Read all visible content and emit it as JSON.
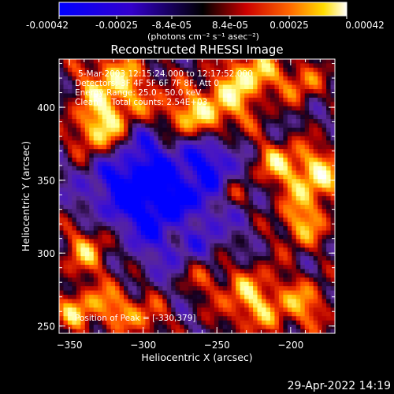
{
  "colorbar": {
    "tick_labels": [
      "-0.00042",
      "-0.00025",
      "-8.4e-05",
      "8.4e-05",
      "0.00025",
      "0.00042"
    ],
    "unit_label": "(photons cm⁻² s⁻¹ asec⁻²)",
    "range": [
      -0.00042,
      0.00042
    ]
  },
  "chart_data": {
    "type": "heatmap",
    "title": "Reconstructed RHESSI Image",
    "xlabel": "Heliocentric X (arcsec)",
    "ylabel": "Heliocentric Y (arcsec)",
    "xlim": [
      -357,
      -170
    ],
    "ylim": [
      245,
      433
    ],
    "x_ticks": [
      -350,
      -300,
      -250,
      -200
    ],
    "x_tick_labels": [
      "−350",
      "−300",
      "−250",
      "−200"
    ],
    "y_ticks": [
      250,
      300,
      350,
      400
    ],
    "y_tick_labels": [
      "250",
      "300",
      "350",
      "400"
    ],
    "info_lines": [
      "5-Mar-2003 12:15:24.000 to 12:17:52.000",
      "Detectors: 3F 4F 5F 6F 7F 8F, Att 0",
      "Energy Range: 25.0 - 50.0 keV",
      "Clean     Total counts: 2.54E+03"
    ],
    "peak_label": "Position of Peak = [-330,379]",
    "peak_position": [
      -330,
      379
    ],
    "colormap": [
      "#0000ff",
      "#000000",
      "#ff0000",
      "#ffff00",
      "#ffffff"
    ]
  },
  "footer": {
    "timestamp": "29-Apr-2022 14:19"
  }
}
